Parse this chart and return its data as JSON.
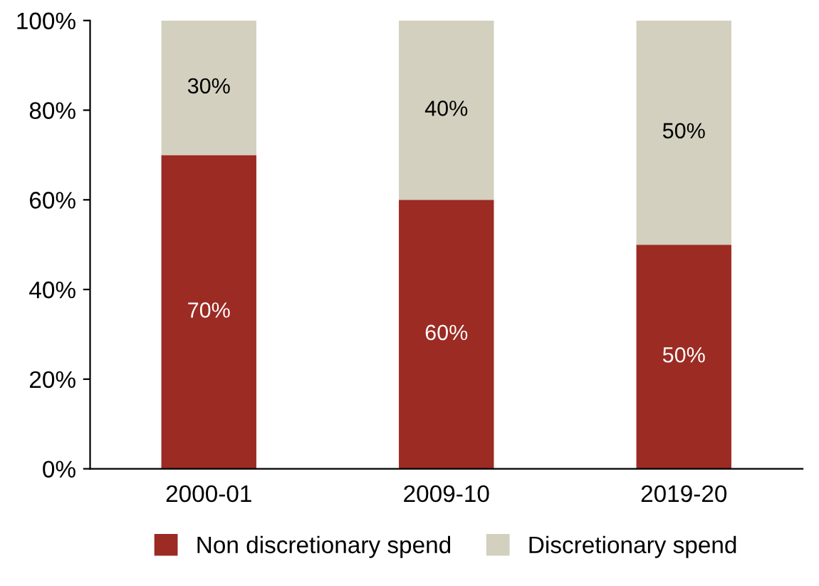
{
  "chart_data": {
    "type": "bar",
    "stacked": true,
    "categories": [
      "2000-01",
      "2009-10",
      "2019-20"
    ],
    "series": [
      {
        "name": "Non discretionary spend",
        "color": "#9b2b23",
        "values": [
          70,
          60,
          50
        ],
        "value_labels": [
          "70%",
          "60%",
          "50%"
        ]
      },
      {
        "name": "Discretionary spend",
        "color": "#d3d0bf",
        "values": [
          30,
          40,
          50
        ],
        "value_labels": [
          "30%",
          "40%",
          "50%"
        ]
      }
    ],
    "ylim": [
      0,
      100
    ],
    "yticks": [
      {
        "value": 0,
        "label": "0%"
      },
      {
        "value": 20,
        "label": "20%"
      },
      {
        "value": 40,
        "label": "40%"
      },
      {
        "value": 60,
        "label": "60%"
      },
      {
        "value": 80,
        "label": "80%"
      },
      {
        "value": 100,
        "label": "100%"
      }
    ],
    "grid": false,
    "legend": "bottom"
  }
}
